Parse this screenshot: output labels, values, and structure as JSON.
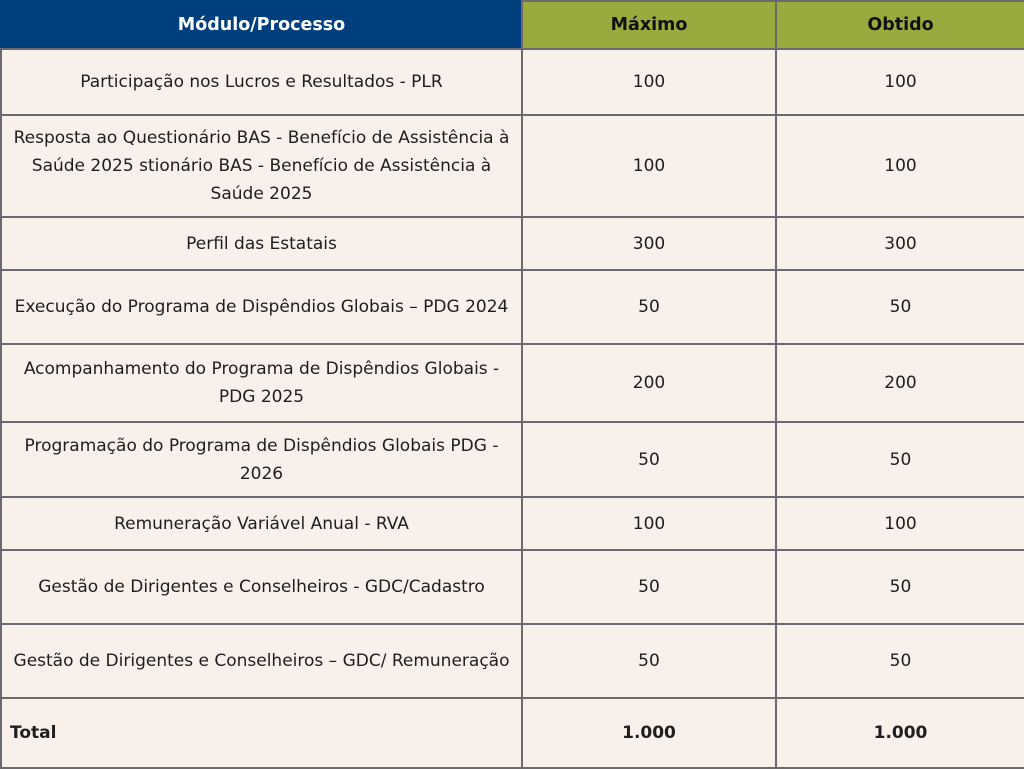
{
  "header": {
    "module": "Módulo/Processo",
    "max": "Máximo",
    "obtained": "Obtido"
  },
  "rows": [
    {
      "module": "Participação nos Lucros e Resultados - PLR",
      "max": "100",
      "obtained": "100"
    },
    {
      "module": "Resposta ao Questionário BAS - Benefício de Assistência à Saúde 2025 stionário BAS - Benefício de Assistência à Saúde 2025",
      "max": "100",
      "obtained": "100"
    },
    {
      "module": "Perfil das Estatais",
      "max": "300",
      "obtained": "300"
    },
    {
      "module": "Execução do Programa de Dispêndios Globais – PDG 2024",
      "max": "50",
      "obtained": "50"
    },
    {
      "module": "Acompanhamento do Programa de Dispêndios Globais - PDG 2025",
      "max": "200",
      "obtained": "200"
    },
    {
      "module": "Programação do Programa de Dispêndios Globais PDG - 2026",
      "max": "50",
      "obtained": "50"
    },
    {
      "module": "Remuneração Variável Anual - RVA",
      "max": "100",
      "obtained": "100"
    },
    {
      "module": "Gestão de Dirigentes e Conselheiros - GDC/Cadastro",
      "max": "50",
      "obtained": "50"
    },
    {
      "module": "Gestão de Dirigentes e Conselheiros – GDC/ Remuneração",
      "max": "50",
      "obtained": "50"
    }
  ],
  "total": {
    "label": "Total",
    "max": "1.000",
    "obtained": "1.000"
  },
  "colors": {
    "header_blue": "#003f7d",
    "header_green": "#99ab3e",
    "cell_bg": "#f7f0eb"
  }
}
